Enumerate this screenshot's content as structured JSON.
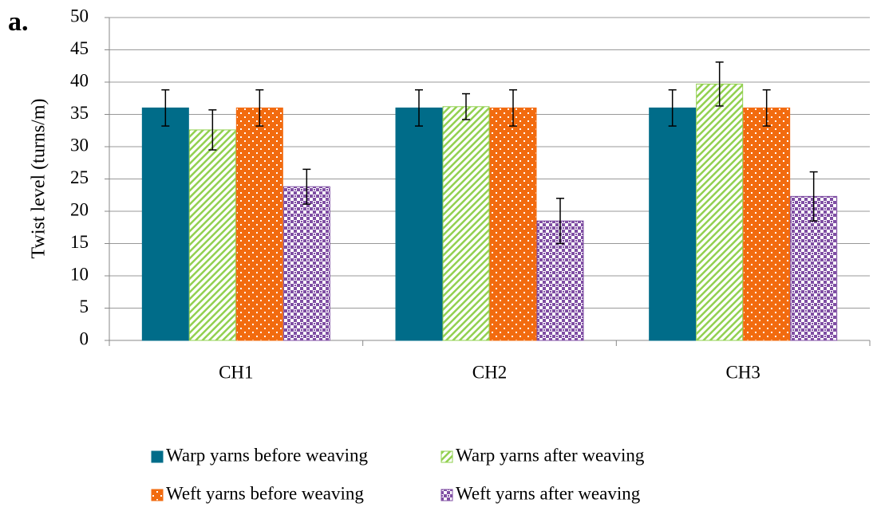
{
  "chart_data": {
    "type": "bar",
    "panel_label": "a.",
    "y_label": "Twist level (turns/m)",
    "categories": [
      "CH1",
      "CH2",
      "CH3"
    ],
    "series": [
      {
        "name": "Warp yarns before weaving",
        "color": "#006c89",
        "pattern": "solid",
        "values": [
          36,
          36,
          36
        ],
        "errors": [
          2.8,
          2.8,
          2.8
        ]
      },
      {
        "name": "Warp yarns after weaving",
        "color": "#92d050",
        "pattern": "diagonal",
        "values": [
          32.6,
          36.2,
          39.7
        ],
        "errors": [
          3.1,
          2,
          3.4
        ]
      },
      {
        "name": "Weft yarns before weaving",
        "color": "#f26b0f",
        "pattern": "dots",
        "values": [
          36,
          36,
          36
        ],
        "errors": [
          2.8,
          2.8,
          2.8
        ]
      },
      {
        "name": "Weft yarns after weaving",
        "color": "#7f4ea3",
        "pattern": "checker",
        "values": [
          23.8,
          18.5,
          22.3
        ],
        "errors": [
          2.7,
          3.5,
          3.8
        ]
      }
    ],
    "ylim": [
      0,
      50
    ],
    "yticks": [
      0,
      5,
      10,
      15,
      20,
      25,
      30,
      35,
      40,
      45,
      50
    ],
    "grid": true
  }
}
